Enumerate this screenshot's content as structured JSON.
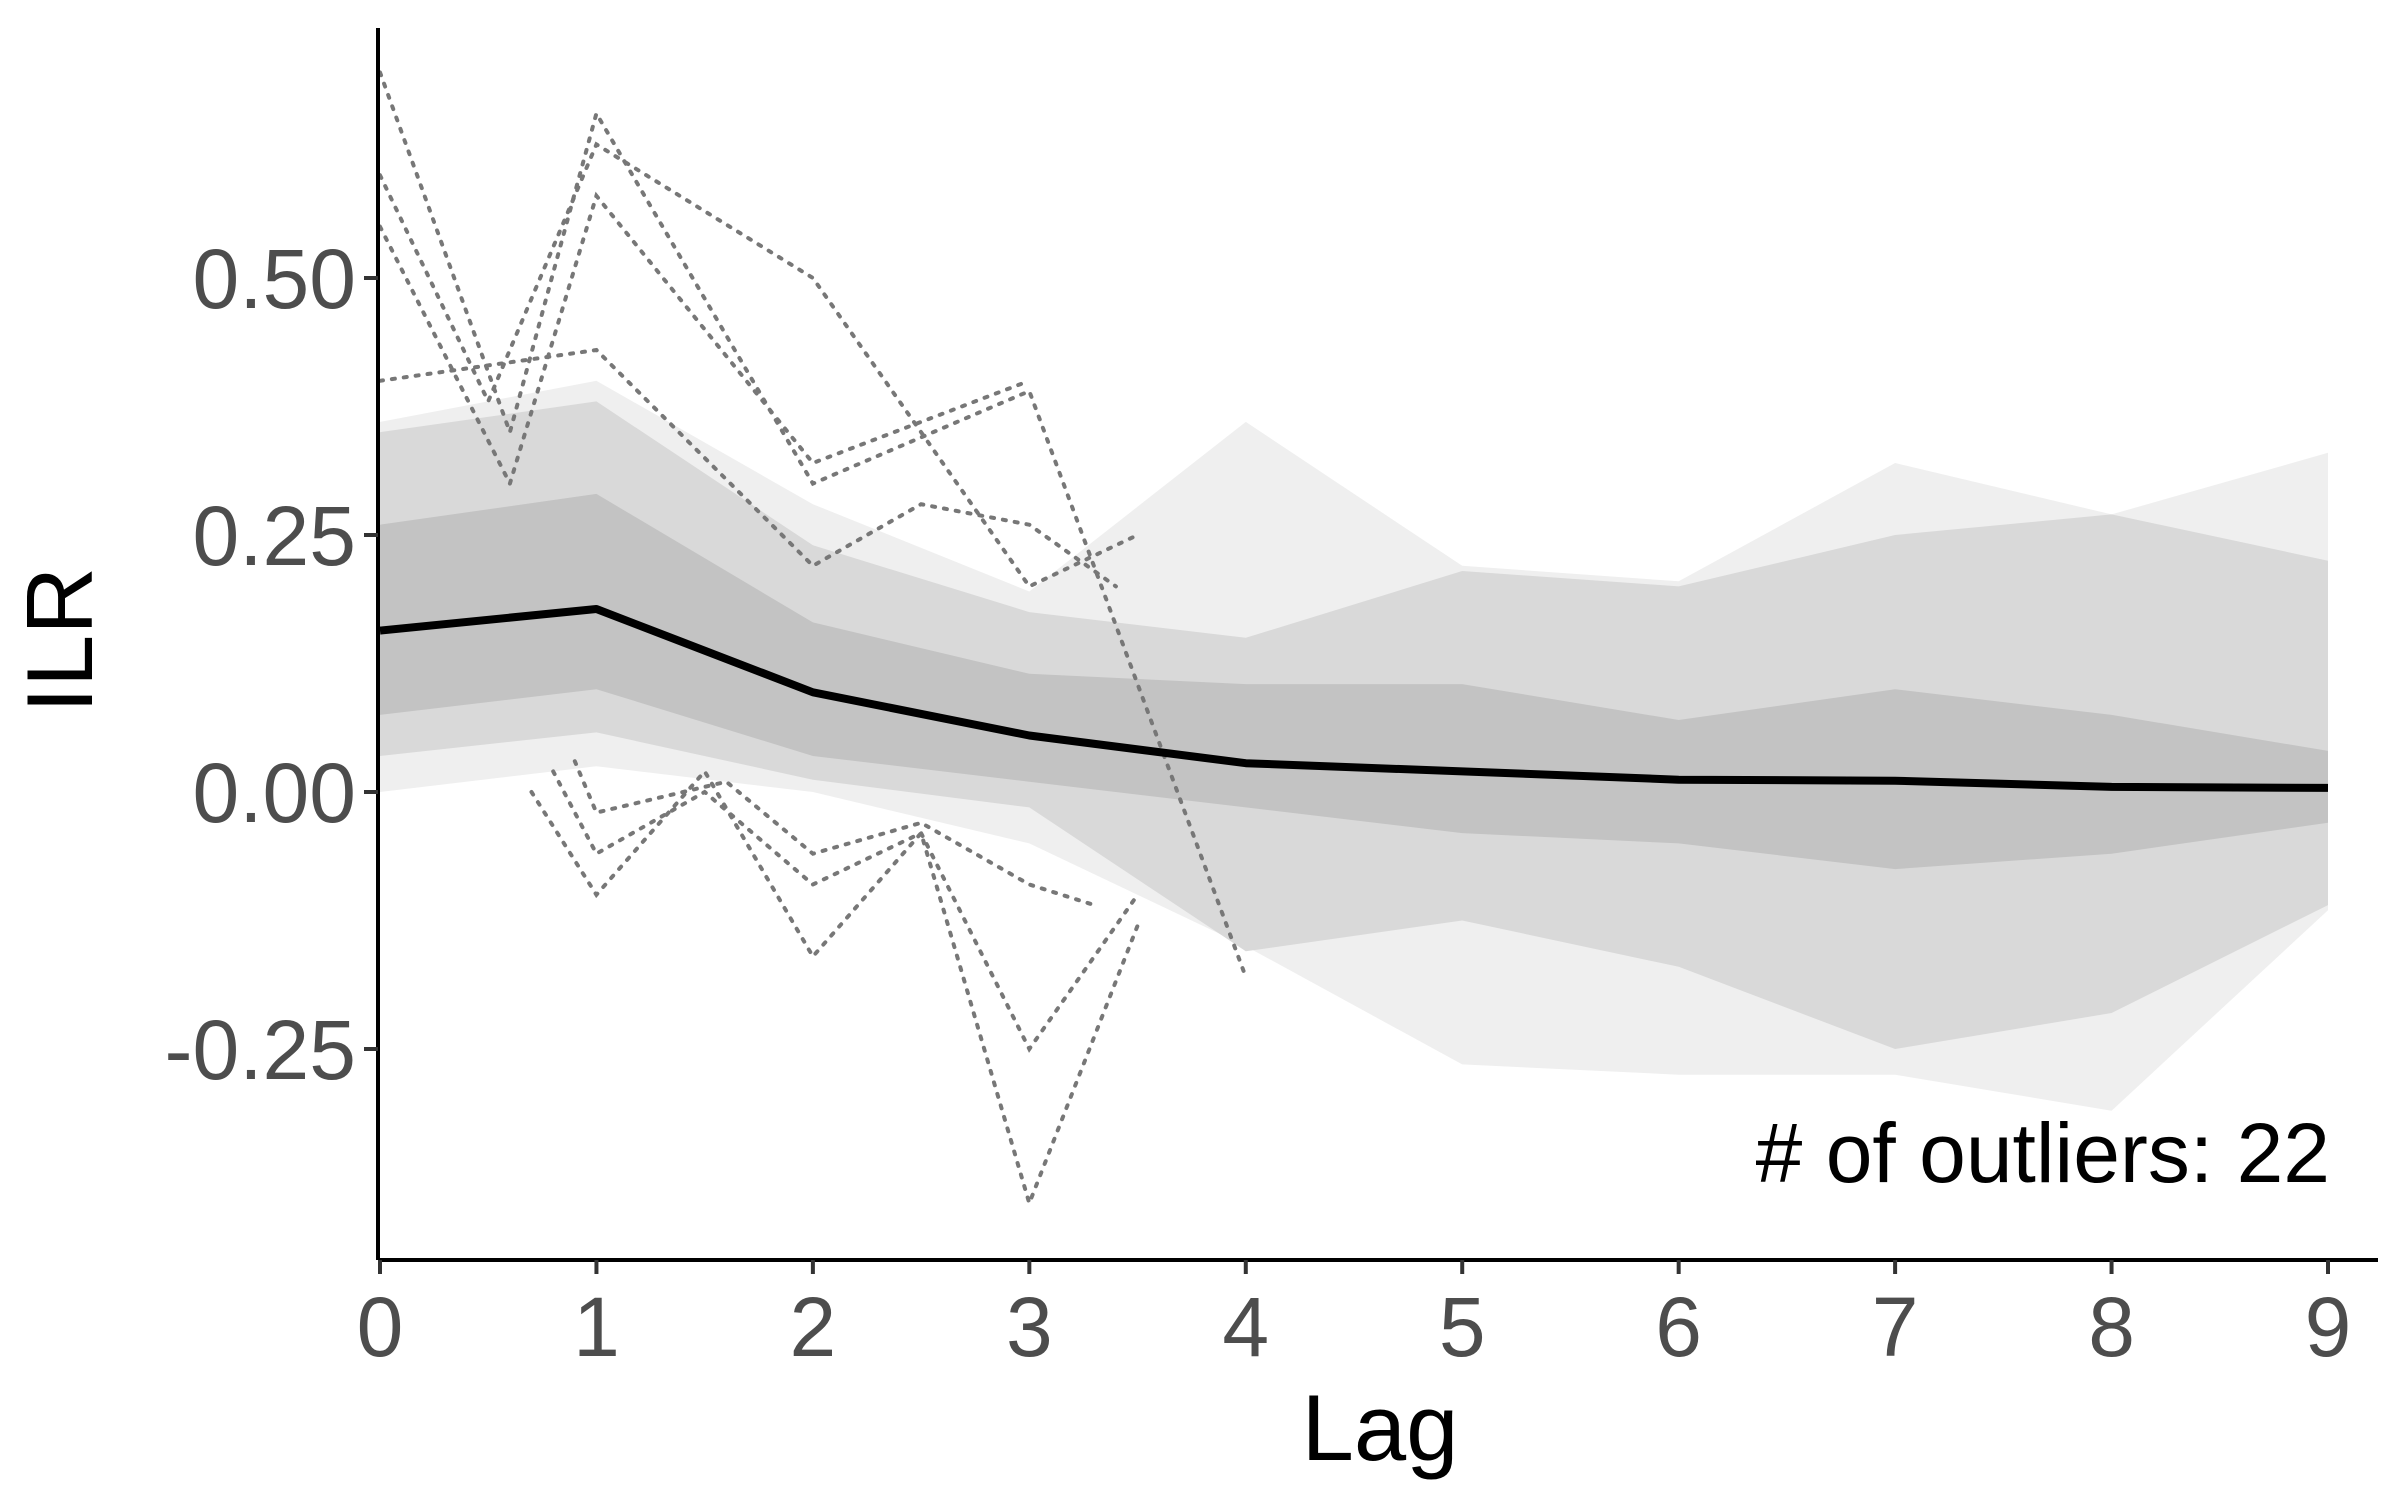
{
  "chart_data": {
    "type": "line",
    "title": "",
    "xlabel": "Lag",
    "ylabel": "ILR",
    "xlim": [
      0,
      9
    ],
    "ylim": [
      -0.45,
      0.75
    ],
    "x_ticks": [
      {
        "value": 0,
        "label": "0"
      },
      {
        "value": 1,
        "label": "1"
      },
      {
        "value": 2,
        "label": "2"
      },
      {
        "value": 3,
        "label": "3"
      },
      {
        "value": 4,
        "label": "4"
      },
      {
        "value": 5,
        "label": "5"
      },
      {
        "value": 6,
        "label": "6"
      },
      {
        "value": 7,
        "label": "7"
      },
      {
        "value": 8,
        "label": "8"
      },
      {
        "value": 9,
        "label": "9"
      }
    ],
    "y_ticks": [
      {
        "value": 0.5,
        "label": "0.50"
      },
      {
        "value": 0.25,
        "label": "0.25"
      },
      {
        "value": 0.0,
        "label": "0.00"
      },
      {
        "value": -0.25,
        "label": "-0.25"
      }
    ],
    "x": [
      0,
      1,
      2,
      3,
      4,
      5,
      6,
      7,
      8,
      9
    ],
    "median": [
      0.157,
      0.178,
      0.097,
      0.055,
      0.028,
      0.02,
      0.012,
      0.011,
      0.005,
      0.004
    ],
    "bands": [
      {
        "name": "outer band",
        "color": "#efefef",
        "lower": [
          0.0,
          0.025,
          0.0,
          -0.05,
          -0.15,
          -0.265,
          -0.275,
          -0.275,
          -0.31,
          -0.115
        ],
        "upper": [
          0.36,
          0.4,
          0.28,
          0.195,
          0.36,
          0.22,
          0.205,
          0.32,
          0.27,
          0.33
        ]
      },
      {
        "name": "middle band",
        "color": "#d9d9d9",
        "lower": [
          0.035,
          0.058,
          0.012,
          -0.015,
          -0.155,
          -0.125,
          -0.17,
          -0.25,
          -0.215,
          -0.11
        ],
        "upper": [
          0.35,
          0.38,
          0.24,
          0.175,
          0.15,
          0.215,
          0.2,
          0.25,
          0.27,
          0.225
        ]
      },
      {
        "name": "inner band",
        "color": "#c3c3c3",
        "lower": [
          0.075,
          0.1,
          0.035,
          0.01,
          -0.015,
          -0.04,
          -0.05,
          -0.075,
          -0.06,
          -0.03
        ],
        "upper": [
          0.26,
          0.29,
          0.165,
          0.115,
          0.105,
          0.105,
          0.07,
          0.1,
          0.075,
          0.04
        ]
      }
    ],
    "outliers": {
      "count": 22,
      "style": "dotted",
      "color": "#777777",
      "series": [
        {
          "x": [
            0,
            0.6,
            1,
            2,
            3,
            4
          ],
          "y": [
            0.7,
            0.35,
            0.66,
            0.3,
            0.39,
            -0.18
          ]
        },
        {
          "x": [
            0,
            0.5,
            1,
            2,
            3,
            3.5
          ],
          "y": [
            0.6,
            0.38,
            0.63,
            0.5,
            0.2,
            0.25
          ]
        },
        {
          "x": [
            0,
            0.6,
            1,
            2,
            3
          ],
          "y": [
            0.55,
            0.3,
            0.58,
            0.32,
            0.4
          ]
        },
        {
          "x": [
            0,
            1,
            2,
            2.5,
            3,
            3.4
          ],
          "y": [
            0.4,
            0.43,
            0.22,
            0.28,
            0.26,
            0.2
          ]
        },
        {
          "x": [
            0.7,
            1,
            1.5,
            2,
            2.5,
            3,
            3.5
          ],
          "y": [
            0.0,
            -0.1,
            0.02,
            -0.16,
            -0.04,
            -0.4,
            -0.13
          ]
        },
        {
          "x": [
            0.8,
            1,
            1.5,
            2,
            2.5,
            3,
            3.5
          ],
          "y": [
            0.02,
            -0.06,
            0.0,
            -0.09,
            -0.04,
            -0.25,
            -0.1
          ]
        },
        {
          "x": [
            0.9,
            1,
            1.6,
            2,
            2.5,
            3,
            3.3
          ],
          "y": [
            0.03,
            -0.02,
            0.01,
            -0.06,
            -0.03,
            -0.09,
            -0.11
          ]
        }
      ]
    },
    "annotation": "# of outliers: 22",
    "legend": "none",
    "grid": false
  }
}
